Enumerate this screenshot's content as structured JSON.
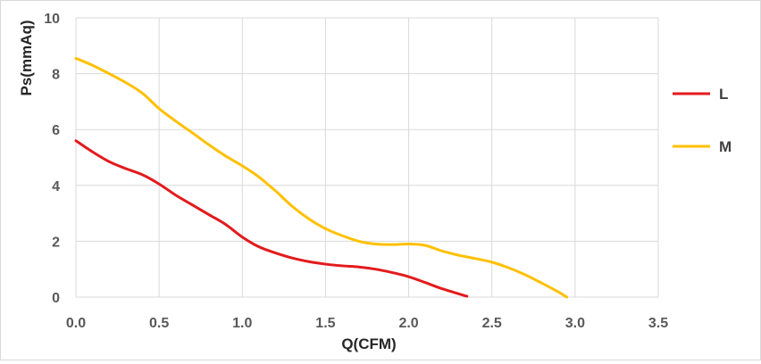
{
  "chart_data": {
    "type": "line",
    "xlabel": "Q(CFM)",
    "ylabel": "Ps(mmAq)",
    "xlim": [
      0,
      3.5
    ],
    "ylim": [
      0,
      10
    ],
    "xticks": [
      0,
      0.5,
      1,
      1.5,
      2,
      2.5,
      3,
      3.5
    ],
    "yticks": [
      0,
      2,
      4,
      6,
      8,
      10
    ],
    "xtick_labels": [
      "0.0",
      "0.5",
      "1.0",
      "1.5",
      "2.0",
      "2.5",
      "3.0",
      "3.5"
    ],
    "ytick_labels": [
      "0",
      "2",
      "4",
      "6",
      "8",
      "10"
    ],
    "grid": true,
    "legend_position": "right",
    "series": [
      {
        "name": "L",
        "color": "#e31a1c",
        "points": [
          [
            0.0,
            5.6
          ],
          [
            0.1,
            5.2
          ],
          [
            0.2,
            4.85
          ],
          [
            0.3,
            4.6
          ],
          [
            0.4,
            4.38
          ],
          [
            0.5,
            4.05
          ],
          [
            0.6,
            3.65
          ],
          [
            0.7,
            3.3
          ],
          [
            0.8,
            2.95
          ],
          [
            0.9,
            2.6
          ],
          [
            1.0,
            2.15
          ],
          [
            1.1,
            1.8
          ],
          [
            1.2,
            1.58
          ],
          [
            1.3,
            1.4
          ],
          [
            1.4,
            1.27
          ],
          [
            1.5,
            1.18
          ],
          [
            1.6,
            1.12
          ],
          [
            1.7,
            1.08
          ],
          [
            1.8,
            1.0
          ],
          [
            1.9,
            0.88
          ],
          [
            2.0,
            0.73
          ],
          [
            2.1,
            0.52
          ],
          [
            2.2,
            0.3
          ],
          [
            2.35,
            0.03
          ]
        ]
      },
      {
        "name": "M",
        "color": "#ffc000",
        "points": [
          [
            0.0,
            8.55
          ],
          [
            0.1,
            8.3
          ],
          [
            0.2,
            8.0
          ],
          [
            0.3,
            7.68
          ],
          [
            0.4,
            7.3
          ],
          [
            0.5,
            6.75
          ],
          [
            0.6,
            6.3
          ],
          [
            0.7,
            5.88
          ],
          [
            0.8,
            5.45
          ],
          [
            0.9,
            5.05
          ],
          [
            1.0,
            4.7
          ],
          [
            1.1,
            4.3
          ],
          [
            1.2,
            3.8
          ],
          [
            1.3,
            3.25
          ],
          [
            1.4,
            2.8
          ],
          [
            1.5,
            2.45
          ],
          [
            1.6,
            2.2
          ],
          [
            1.7,
            2.0
          ],
          [
            1.8,
            1.9
          ],
          [
            1.9,
            1.88
          ],
          [
            2.0,
            1.9
          ],
          [
            2.1,
            1.85
          ],
          [
            2.2,
            1.65
          ],
          [
            2.3,
            1.5
          ],
          [
            2.4,
            1.38
          ],
          [
            2.5,
            1.25
          ],
          [
            2.6,
            1.05
          ],
          [
            2.7,
            0.8
          ],
          [
            2.8,
            0.5
          ],
          [
            2.9,
            0.18
          ],
          [
            2.95,
            0.0
          ]
        ]
      }
    ]
  }
}
